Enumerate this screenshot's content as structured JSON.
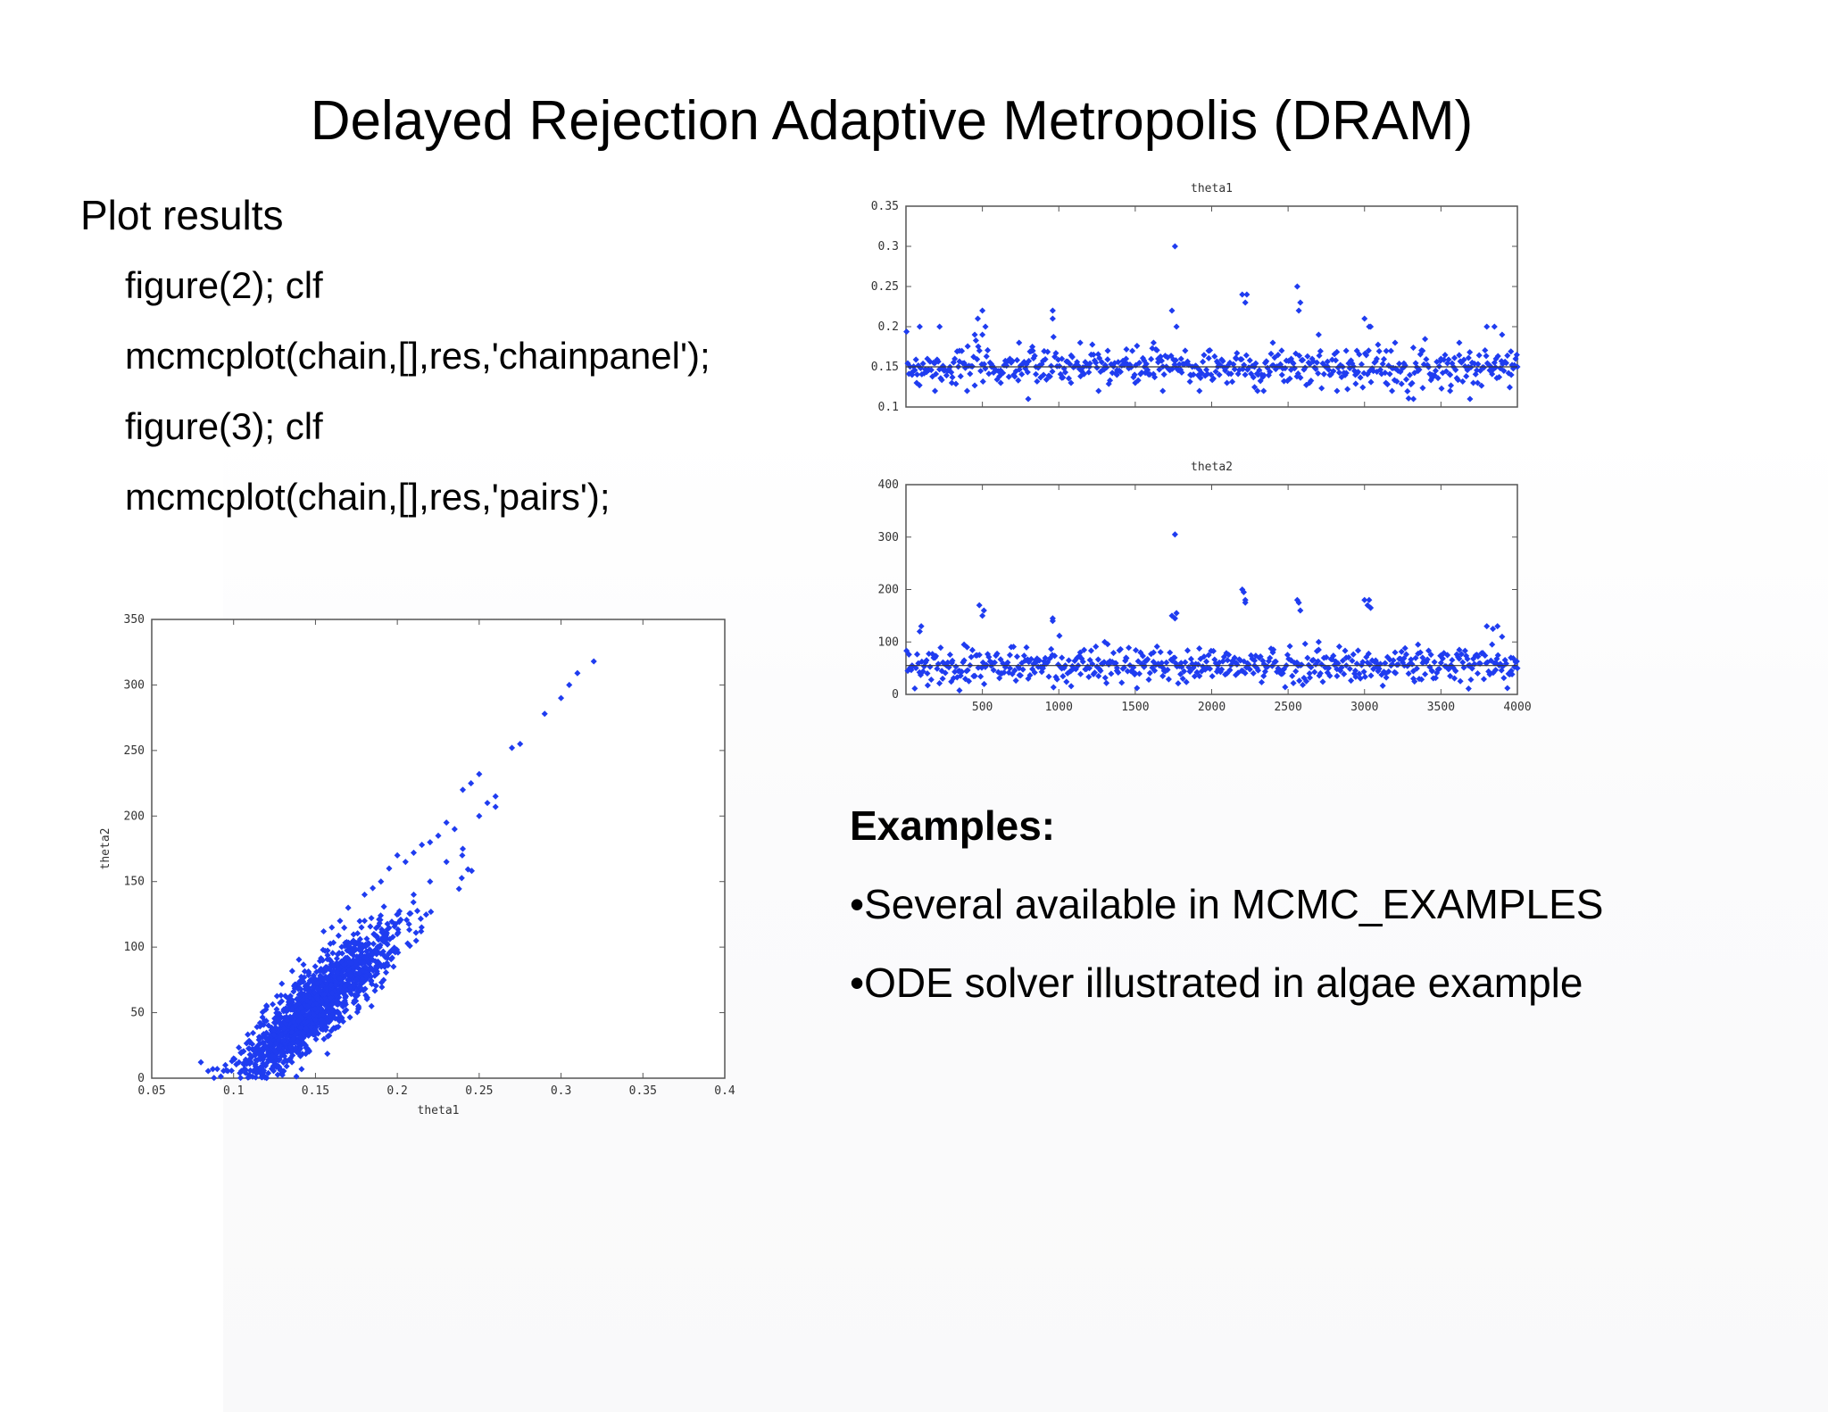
{
  "title": "Delayed Rejection Adaptive Metropolis (DRAM)",
  "heading": "Plot results",
  "code_lines": [
    "figure(2); clf",
    "mcmcplot(chain,[],res,'chainpanel');",
    "figure(3); clf",
    "mcmcplot(chain,[],res,'pairs');"
  ],
  "examples": {
    "title": "Examples:",
    "items": [
      "•Several available in MCMC_EXAMPLES",
      "•ODE solver illustrated in algae example"
    ]
  },
  "colors": {
    "marker": "#1f3cf0",
    "axis": "#555555",
    "meanline": "#333333"
  },
  "chart_data": [
    {
      "type": "scatter",
      "title": "theta1",
      "xlabel": "",
      "ylabel": "",
      "xlim": [
        0,
        4000
      ],
      "ylim": [
        0.1,
        0.35
      ],
      "xticks": [
        "500",
        "1000",
        "1500",
        "2000",
        "2500",
        "3000",
        "3500",
        "4000"
      ],
      "xtick_values": [
        500,
        1000,
        1500,
        2000,
        2500,
        3000,
        3500,
        4000
      ],
      "show_xtick_labels": false,
      "yticks": [
        "0.1",
        "0.15",
        "0.2",
        "0.25",
        "0.3",
        "0.35"
      ],
      "ytick_values": [
        0.1,
        0.15,
        0.2,
        0.25,
        0.3,
        0.35
      ],
      "mean_line": 0.15,
      "series": [
        {
          "x": [
            40,
            90,
            140,
            190,
            240,
            300,
            350,
            400,
            450,
            500,
            560,
            620,
            680,
            740,
            800,
            850,
            900,
            960,
            1020,
            1080,
            1140,
            1200,
            1260,
            1320,
            1380,
            1440,
            1500,
            1560,
            1620,
            1680,
            1740,
            1760,
            1800,
            1860,
            1920,
            1980,
            2040,
            2100,
            2160,
            2200,
            2220,
            2280,
            2340,
            2400,
            2460,
            2520,
            2560,
            2580,
            2640,
            2700,
            2760,
            2820,
            2880,
            2940,
            3000,
            3040,
            3080,
            3140,
            3200,
            3260,
            3320,
            3380,
            3440,
            3500,
            3560,
            3620,
            3680,
            3740,
            3800,
            3860,
            3900,
            3960,
            4000,
            220,
            470,
            520,
            960,
            1770,
            2230,
            2570,
            3030,
            3850,
            3180,
            3560,
            70,
            830,
            1650,
            2300,
            2950,
            3690,
            500
          ],
          "y": [
            0.14,
            0.2,
            0.16,
            0.12,
            0.15,
            0.13,
            0.17,
            0.12,
            0.19,
            0.22,
            0.15,
            0.13,
            0.16,
            0.18,
            0.11,
            0.15,
            0.14,
            0.21,
            0.16,
            0.13,
            0.18,
            0.15,
            0.12,
            0.17,
            0.14,
            0.16,
            0.13,
            0.15,
            0.18,
            0.12,
            0.22,
            0.3,
            0.16,
            0.14,
            0.12,
            0.17,
            0.15,
            0.13,
            0.16,
            0.24,
            0.23,
            0.15,
            0.12,
            0.18,
            0.14,
            0.16,
            0.25,
            0.23,
            0.13,
            0.19,
            0.15,
            0.12,
            0.17,
            0.14,
            0.21,
            0.2,
            0.16,
            0.13,
            0.18,
            0.15,
            0.11,
            0.17,
            0.14,
            0.16,
            0.12,
            0.18,
            0.15,
            0.13,
            0.2,
            0.16,
            0.19,
            0.14,
            0.15,
            0.2,
            0.21,
            0.2,
            0.22,
            0.2,
            0.24,
            0.22,
            0.2,
            0.2,
            0.12,
            0.14,
            0.13,
            0.17,
            0.16,
            0.12,
            0.17,
            0.11,
            0.19
          ]
        }
      ]
    },
    {
      "type": "scatter",
      "title": "theta2",
      "xlabel": "",
      "ylabel": "",
      "xlim": [
        0,
        4000
      ],
      "ylim": [
        0,
        400
      ],
      "xticks": [
        "500",
        "1000",
        "1500",
        "2000",
        "2500",
        "3000",
        "3500",
        "4000"
      ],
      "xtick_values": [
        500,
        1000,
        1500,
        2000,
        2500,
        3000,
        3500,
        4000
      ],
      "show_xtick_labels": true,
      "yticks": [
        "0",
        "100",
        "200",
        "300",
        "400"
      ],
      "ytick_values": [
        0,
        100,
        200,
        300,
        400
      ],
      "mean_line": 55,
      "series": [
        {
          "x": [
            40,
            90,
            140,
            190,
            240,
            300,
            350,
            400,
            450,
            500,
            560,
            620,
            680,
            740,
            800,
            850,
            900,
            960,
            1020,
            1080,
            1140,
            1200,
            1260,
            1320,
            1380,
            1440,
            1500,
            1560,
            1620,
            1680,
            1740,
            1760,
            1800,
            1860,
            1920,
            1980,
            2040,
            2100,
            2160,
            2200,
            2220,
            2280,
            2340,
            2400,
            2460,
            2520,
            2560,
            2580,
            2640,
            2700,
            2760,
            2820,
            2880,
            2940,
            3000,
            3040,
            3080,
            3140,
            3200,
            3260,
            3320,
            3380,
            3440,
            3500,
            3560,
            3620,
            3680,
            3740,
            3800,
            3860,
            3900,
            3960,
            4000,
            100,
            480,
            510,
            960,
            1760,
            1770,
            2210,
            2220,
            2570,
            3020,
            3030,
            3840,
            3870,
            380,
            1300,
            2700,
            3350
          ],
          "y": [
            55,
            120,
            40,
            70,
            30,
            60,
            45,
            90,
            35,
            150,
            60,
            40,
            75,
            50,
            30,
            65,
            55,
            140,
            70,
            45,
            80,
            50,
            35,
            60,
            45,
            70,
            40,
            55,
            80,
            35,
            150,
            305,
            60,
            45,
            35,
            75,
            55,
            40,
            60,
            200,
            180,
            55,
            35,
            80,
            45,
            65,
            180,
            160,
            40,
            85,
            50,
            35,
            70,
            45,
            180,
            165,
            60,
            40,
            80,
            55,
            30,
            70,
            45,
            60,
            35,
            85,
            55,
            40,
            130,
            60,
            110,
            45,
            50,
            130,
            170,
            160,
            145,
            145,
            155,
            195,
            175,
            175,
            170,
            180,
            125,
            130,
            95,
            100,
            100,
            95
          ]
        }
      ]
    },
    {
      "type": "scatter",
      "title": "",
      "xlabel": "theta1",
      "ylabel": "theta2",
      "xlim": [
        0.05,
        0.4
      ],
      "ylim": [
        0,
        350
      ],
      "xticks": [
        "0.05",
        "0.1",
        "0.15",
        "0.2",
        "0.25",
        "0.3",
        "0.35",
        "0.4"
      ],
      "xtick_values": [
        0.05,
        0.1,
        0.15,
        0.2,
        0.25,
        0.3,
        0.35,
        0.4
      ],
      "show_xtick_labels": true,
      "yticks": [
        "0",
        "50",
        "100",
        "150",
        "200",
        "250",
        "300",
        "350"
      ],
      "ytick_values": [
        0,
        50,
        100,
        150,
        200,
        250,
        300,
        350
      ],
      "cloud": {
        "center_x": 0.15,
        "center_y": 55,
        "slope": 1100,
        "spread_x": 0.022,
        "noise_y": 14,
        "count": 1500
      },
      "series": [
        {
          "x": [
            0.32,
            0.31,
            0.3,
            0.305,
            0.29,
            0.275,
            0.27,
            0.26,
            0.255,
            0.25,
            0.245,
            0.24,
            0.235,
            0.23,
            0.225,
            0.22,
            0.215,
            0.21,
            0.205,
            0.2,
            0.195,
            0.19,
            0.185,
            0.18,
            0.17,
            0.165,
            0.16,
            0.155,
            0.09,
            0.095,
            0.1,
            0.105,
            0.11,
            0.115,
            0.12,
            0.2,
            0.21,
            0.19,
            0.175,
            0.18,
            0.22,
            0.23,
            0.24,
            0.18,
            0.16,
            0.17,
            0.25,
            0.26
          ],
          "y": [
            318,
            309,
            290,
            300,
            278,
            255,
            252,
            207,
            210,
            232,
            225,
            220,
            190,
            195,
            185,
            180,
            178,
            172,
            165,
            170,
            160,
            150,
            145,
            140,
            130,
            120,
            115,
            112,
            7,
            10,
            15,
            20,
            18,
            25,
            30,
            110,
            140,
            95,
            75,
            88,
            150,
            165,
            175,
            120,
            65,
            100,
            200,
            215
          ]
        }
      ]
    }
  ]
}
